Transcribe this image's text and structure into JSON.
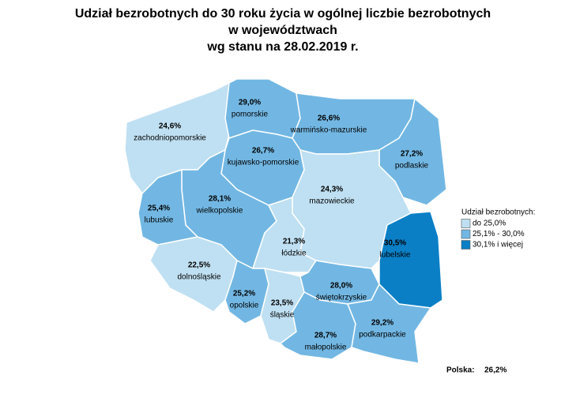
{
  "title": [
    "Udział bezrobotnych do 30 roku życia w ogólnej liczbie bezrobotnych",
    "w województwach",
    "wg stanu na 28.02.2019 r."
  ],
  "regions": [
    {
      "name": "zachodniopomorskie",
      "value": 24.6,
      "value_label": "24,6%",
      "color": "#bfe0f2"
    },
    {
      "name": "pomorskie",
      "value": 29.0,
      "value_label": "29,0%",
      "color": "#72b7e3"
    },
    {
      "name": "warmińsko-mazurskie",
      "value": 26.6,
      "value_label": "26,6%",
      "color": "#72b7e3"
    },
    {
      "name": "podlaskie",
      "value": 27.2,
      "value_label": "27,2%",
      "color": "#72b7e3"
    },
    {
      "name": "kujawsko-pomorskie",
      "value": 26.7,
      "value_label": "26,7%",
      "color": "#72b7e3"
    },
    {
      "name": "wielkopolskie",
      "value": 28.1,
      "value_label": "28,1%",
      "color": "#72b7e3"
    },
    {
      "name": "lubuskie",
      "value": 25.4,
      "value_label": "25,4%",
      "color": "#72b7e3"
    },
    {
      "name": "mazowieckie",
      "value": 24.3,
      "value_label": "24,3%",
      "color": "#bfe0f2"
    },
    {
      "name": "łódzkie",
      "value": 21.3,
      "value_label": "21,3%",
      "color": "#bfe0f2"
    },
    {
      "name": "lubelskie",
      "value": 30.5,
      "value_label": "30,5%",
      "color": "#0a7fc6"
    },
    {
      "name": "dolnośląskie",
      "value": 22.5,
      "value_label": "22,5%",
      "color": "#bfe0f2"
    },
    {
      "name": "opolskie",
      "value": 25.2,
      "value_label": "25,2%",
      "color": "#72b7e3"
    },
    {
      "name": "śląskie",
      "value": 23.5,
      "value_label": "23,5%",
      "color": "#bfe0f2"
    },
    {
      "name": "świętokrzyskie",
      "value": 28.0,
      "value_label": "28,0%",
      "color": "#72b7e3"
    },
    {
      "name": "małopolskie",
      "value": 28.7,
      "value_label": "28,7%",
      "color": "#72b7e3"
    },
    {
      "name": "podkarpackie",
      "value": 29.2,
      "value_label": "29,2%",
      "color": "#72b7e3"
    }
  ],
  "legend": {
    "title": "Udział bezrobotnych:",
    "items": [
      {
        "label": "do 25,0%",
        "color": "#bfe0f2"
      },
      {
        "label": "25,1% - 30,0%",
        "color": "#72b7e3"
      },
      {
        "label": "30,1% i więcej",
        "color": "#0a7fc6"
      }
    ]
  },
  "total": {
    "label": "Polska:",
    "value": 26.2,
    "value_label": "26,2%"
  }
}
